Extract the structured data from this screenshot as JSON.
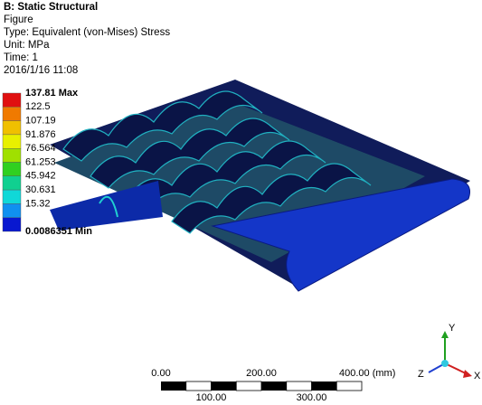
{
  "header": {
    "title": "B: Static Structural",
    "lines": [
      "Figure",
      "Type: Equivalent (von-Mises) Stress",
      "Unit: MPa",
      "Time: 1",
      "2016/1/16 11:08"
    ]
  },
  "legend": {
    "entries": [
      {
        "label": "137.81 Max",
        "color": "#e01010"
      },
      {
        "label": "122.5",
        "color": "#f07a00"
      },
      {
        "label": "107.19",
        "color": "#f0c000"
      },
      {
        "label": "91.876",
        "color": "#e8f000"
      },
      {
        "label": "76.564",
        "color": "#a0e000"
      },
      {
        "label": "61.253",
        "color": "#30d020"
      },
      {
        "label": "45.942",
        "color": "#10d090"
      },
      {
        "label": "30.631",
        "color": "#10d8d8"
      },
      {
        "label": "15.32",
        "color": "#1090f0"
      },
      {
        "label": "0.0086351 Min",
        "color": "#0818d0"
      }
    ]
  },
  "scale_bar": {
    "top_labels": [
      "0.00",
      "200.00",
      "400.00 (mm)"
    ],
    "bottom_labels": [
      "100.00",
      "300.00"
    ]
  },
  "triad": {
    "x": "X",
    "y": "Y",
    "z": "Z"
  }
}
